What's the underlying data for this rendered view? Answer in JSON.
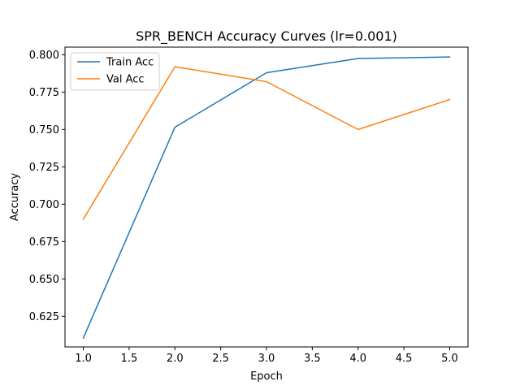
{
  "chart_data": {
    "type": "line",
    "title": "SPR_BENCH Accuracy Curves (lr=0.001)",
    "xlabel": "Epoch",
    "ylabel": "Accuracy",
    "x": [
      1.0,
      2.0,
      3.0,
      4.0,
      5.0
    ],
    "xlim": [
      0.8,
      5.2
    ],
    "ylim": [
      0.6045,
      0.8051
    ],
    "xticks": [
      1.0,
      1.5,
      2.0,
      2.5,
      3.0,
      3.5,
      4.0,
      4.5,
      5.0
    ],
    "xtick_labels": [
      "1.0",
      "1.5",
      "2.0",
      "2.5",
      "3.0",
      "3.5",
      "4.0",
      "4.5",
      "5.0"
    ],
    "yticks": [
      0.625,
      0.65,
      0.675,
      0.7,
      0.725,
      0.75,
      0.775,
      0.8
    ],
    "ytick_labels": [
      "0.625",
      "0.650",
      "0.675",
      "0.700",
      "0.725",
      "0.750",
      "0.775",
      "0.800"
    ],
    "grid": false,
    "legend_position": "top-left",
    "series": [
      {
        "name": "Train Acc",
        "color": "#1f77b4",
        "values": [
          0.6105,
          0.7515,
          0.788,
          0.7975,
          0.7985
        ]
      },
      {
        "name": "Val Acc",
        "color": "#ff7f0e",
        "values": [
          0.69,
          0.792,
          0.782,
          0.75,
          0.77
        ]
      }
    ]
  }
}
